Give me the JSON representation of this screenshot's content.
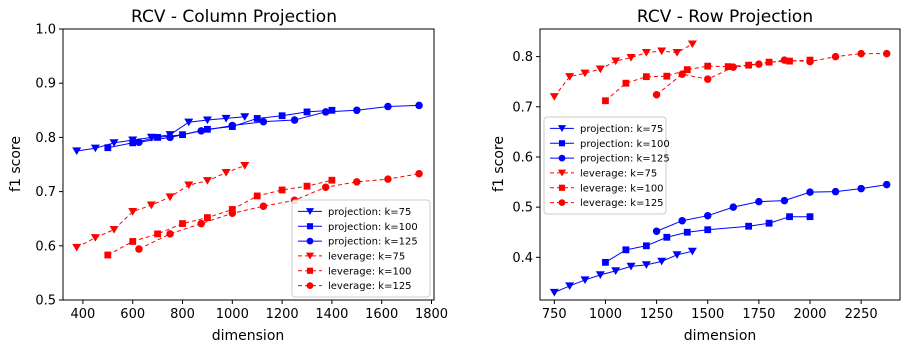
{
  "chart_data": [
    {
      "type": "line",
      "title": "RCV - Column Projection",
      "xlabel": "dimension",
      "ylabel": "f1 score",
      "xlim": [
        320,
        1810
      ],
      "ylim": [
        0.5,
        1.0
      ],
      "xticks": [
        400,
        600,
        800,
        1000,
        1200,
        1400,
        1600,
        1800
      ],
      "yticks": [
        0.5,
        0.6,
        0.7,
        0.8,
        0.9,
        1.0
      ],
      "legend": "lower-right",
      "grid": false,
      "series": [
        {
          "name": "projection: k=75",
          "color": "#0000ff",
          "dash": false,
          "marker": "triangle-down",
          "x": [
            375,
            450,
            525,
            600,
            675,
            750,
            825,
            900,
            975,
            1050
          ],
          "y": [
            0.775,
            0.78,
            0.79,
            0.795,
            0.8,
            0.805,
            0.828,
            0.832,
            0.835,
            0.838
          ]
        },
        {
          "name": "projection: k=100",
          "color": "#0000ff",
          "dash": false,
          "marker": "square",
          "x": [
            500,
            600,
            700,
            800,
            900,
            1000,
            1100,
            1200,
            1300,
            1400
          ],
          "y": [
            0.781,
            0.79,
            0.8,
            0.805,
            0.815,
            0.82,
            0.835,
            0.84,
            0.847,
            0.85
          ]
        },
        {
          "name": "projection: k=125",
          "color": "#0000ff",
          "dash": false,
          "marker": "circle",
          "x": [
            625,
            750,
            875,
            1000,
            1125,
            1250,
            1375,
            1500,
            1625,
            1750
          ],
          "y": [
            0.791,
            0.8,
            0.812,
            0.822,
            0.829,
            0.832,
            0.847,
            0.85,
            0.857,
            0.859
          ]
        },
        {
          "name": "leverage: k=75",
          "color": "#ff0000",
          "dash": true,
          "marker": "triangle-down",
          "x": [
            375,
            450,
            525,
            600,
            675,
            750,
            825,
            900,
            975,
            1050
          ],
          "y": [
            0.597,
            0.615,
            0.63,
            0.663,
            0.675,
            0.69,
            0.712,
            0.72,
            0.735,
            0.748
          ]
        },
        {
          "name": "leverage: k=100",
          "color": "#ff0000",
          "dash": true,
          "marker": "square",
          "x": [
            500,
            600,
            700,
            800,
            900,
            1000,
            1100,
            1200,
            1300,
            1400
          ],
          "y": [
            0.583,
            0.608,
            0.622,
            0.641,
            0.652,
            0.667,
            0.692,
            0.703,
            0.71,
            0.721
          ]
        },
        {
          "name": "leverage: k=125",
          "color": "#ff0000",
          "dash": true,
          "marker": "circle",
          "x": [
            625,
            750,
            875,
            1000,
            1125,
            1250,
            1375,
            1500,
            1625,
            1750
          ],
          "y": [
            0.594,
            0.622,
            0.641,
            0.66,
            0.673,
            0.684,
            0.708,
            0.718,
            0.723,
            0.733
          ]
        }
      ]
    },
    {
      "type": "line",
      "title": "RCV - Row Projection",
      "xlabel": "dimension",
      "ylabel": "f1 score",
      "xlim": [
        680,
        2440
      ],
      "ylim": [
        0.315,
        0.855
      ],
      "xticks": [
        750,
        1000,
        1250,
        1500,
        1750,
        2000,
        2250
      ],
      "yticks": [
        0.4,
        0.5,
        0.6,
        0.7,
        0.8
      ],
      "legend": "center-left",
      "grid": false,
      "series": [
        {
          "name": "projection: k=75",
          "color": "#0000ff",
          "dash": false,
          "marker": "triangle-down",
          "x": [
            750,
            825,
            900,
            975,
            1050,
            1125,
            1200,
            1275,
            1350,
            1425
          ],
          "y": [
            0.33,
            0.343,
            0.355,
            0.365,
            0.373,
            0.382,
            0.385,
            0.392,
            0.405,
            0.412
          ]
        },
        {
          "name": "projection: k=100",
          "color": "#0000ff",
          "dash": false,
          "marker": "square",
          "x": [
            1000,
            1100,
            1200,
            1300,
            1400,
            1500,
            1700,
            1800,
            1900,
            2000
          ],
          "y": [
            0.39,
            0.415,
            0.423,
            0.44,
            0.45,
            0.455,
            0.462,
            0.468,
            0.481,
            0.481
          ]
        },
        {
          "name": "projection: k=125",
          "color": "#0000ff",
          "dash": false,
          "marker": "circle",
          "x": [
            1250,
            1375,
            1500,
            1625,
            1750,
            1875,
            2000,
            2125,
            2250,
            2375
          ],
          "y": [
            0.452,
            0.473,
            0.483,
            0.5,
            0.511,
            0.513,
            0.53,
            0.531,
            0.537,
            0.545
          ]
        },
        {
          "name": "leverage: k=75",
          "color": "#ff0000",
          "dash": true,
          "marker": "triangle-down",
          "x": [
            750,
            825,
            900,
            975,
            1050,
            1125,
            1200,
            1275,
            1350,
            1425
          ],
          "y": [
            0.72,
            0.76,
            0.767,
            0.775,
            0.791,
            0.798,
            0.808,
            0.811,
            0.808,
            0.825
          ]
        },
        {
          "name": "leverage: k=100",
          "color": "#ff0000",
          "dash": true,
          "marker": "square",
          "x": [
            1000,
            1100,
            1200,
            1300,
            1400,
            1500,
            1600,
            1700,
            1800,
            1900,
            2000
          ],
          "y": [
            0.712,
            0.747,
            0.76,
            0.761,
            0.774,
            0.781,
            0.78,
            0.783,
            0.789,
            0.791,
            0.793
          ]
        },
        {
          "name": "leverage: k=125",
          "color": "#ff0000",
          "dash": true,
          "marker": "circle",
          "x": [
            1250,
            1375,
            1500,
            1625,
            1750,
            1875,
            2000,
            2125,
            2250,
            2375
          ],
          "y": [
            0.724,
            0.765,
            0.755,
            0.779,
            0.785,
            0.793,
            0.79,
            0.8,
            0.806,
            0.806
          ]
        }
      ]
    }
  ]
}
